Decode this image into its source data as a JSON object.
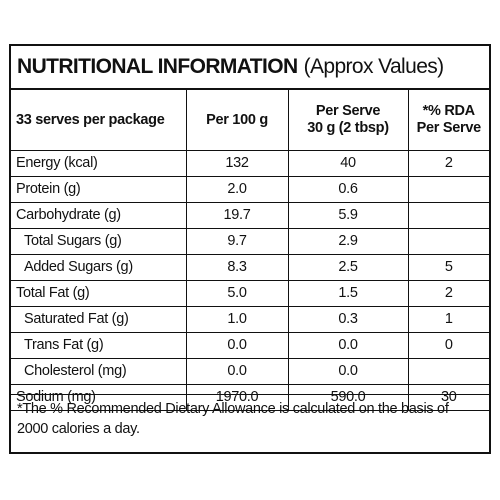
{
  "title": {
    "main": "NUTRITIONAL INFORMATION",
    "sub": "(Approx Values)"
  },
  "table": {
    "headers": {
      "servings": "33 serves per package",
      "per100": "Per 100 g",
      "perServe_line1": "Per Serve",
      "perServe_line2": "30 g (2 tbsp)",
      "rda_line1": "*% RDA",
      "rda_line2": "Per Serve"
    },
    "rows": [
      {
        "label": "Energy (kcal)",
        "per100": "132",
        "perServe": "40",
        "rda": "2"
      },
      {
        "label": "Protein (g)",
        "per100": "2.0",
        "perServe": "0.6",
        "rda": ""
      },
      {
        "label": "Carbohydrate (g)",
        "per100": "19.7",
        "perServe": "5.9",
        "rda": ""
      },
      {
        "label": "Total Sugars (g)",
        "per100": "9.7",
        "perServe": "2.9",
        "rda": ""
      },
      {
        "label": "Added Sugars (g)",
        "per100": "8.3",
        "perServe": "2.5",
        "rda": "5"
      },
      {
        "label": "Total Fat (g)",
        "per100": "5.0",
        "perServe": "1.5",
        "rda": "2"
      },
      {
        "label": "Saturated Fat (g)",
        "per100": "1.0",
        "perServe": "0.3",
        "rda": "1"
      },
      {
        "label": "Trans Fat (g)",
        "per100": "0.0",
        "perServe": "0.0",
        "rda": "0"
      },
      {
        "label": "Cholesterol (mg)",
        "per100": "0.0",
        "perServe": "0.0",
        "rda": ""
      },
      {
        "label": "Sodium (mg)",
        "per100": "1970.0",
        "perServe": "590.0",
        "rda": "30"
      }
    ]
  },
  "footnote": "*The % Recommended Dietary Allowance is calculated on the basis of 2000 calories a day."
}
